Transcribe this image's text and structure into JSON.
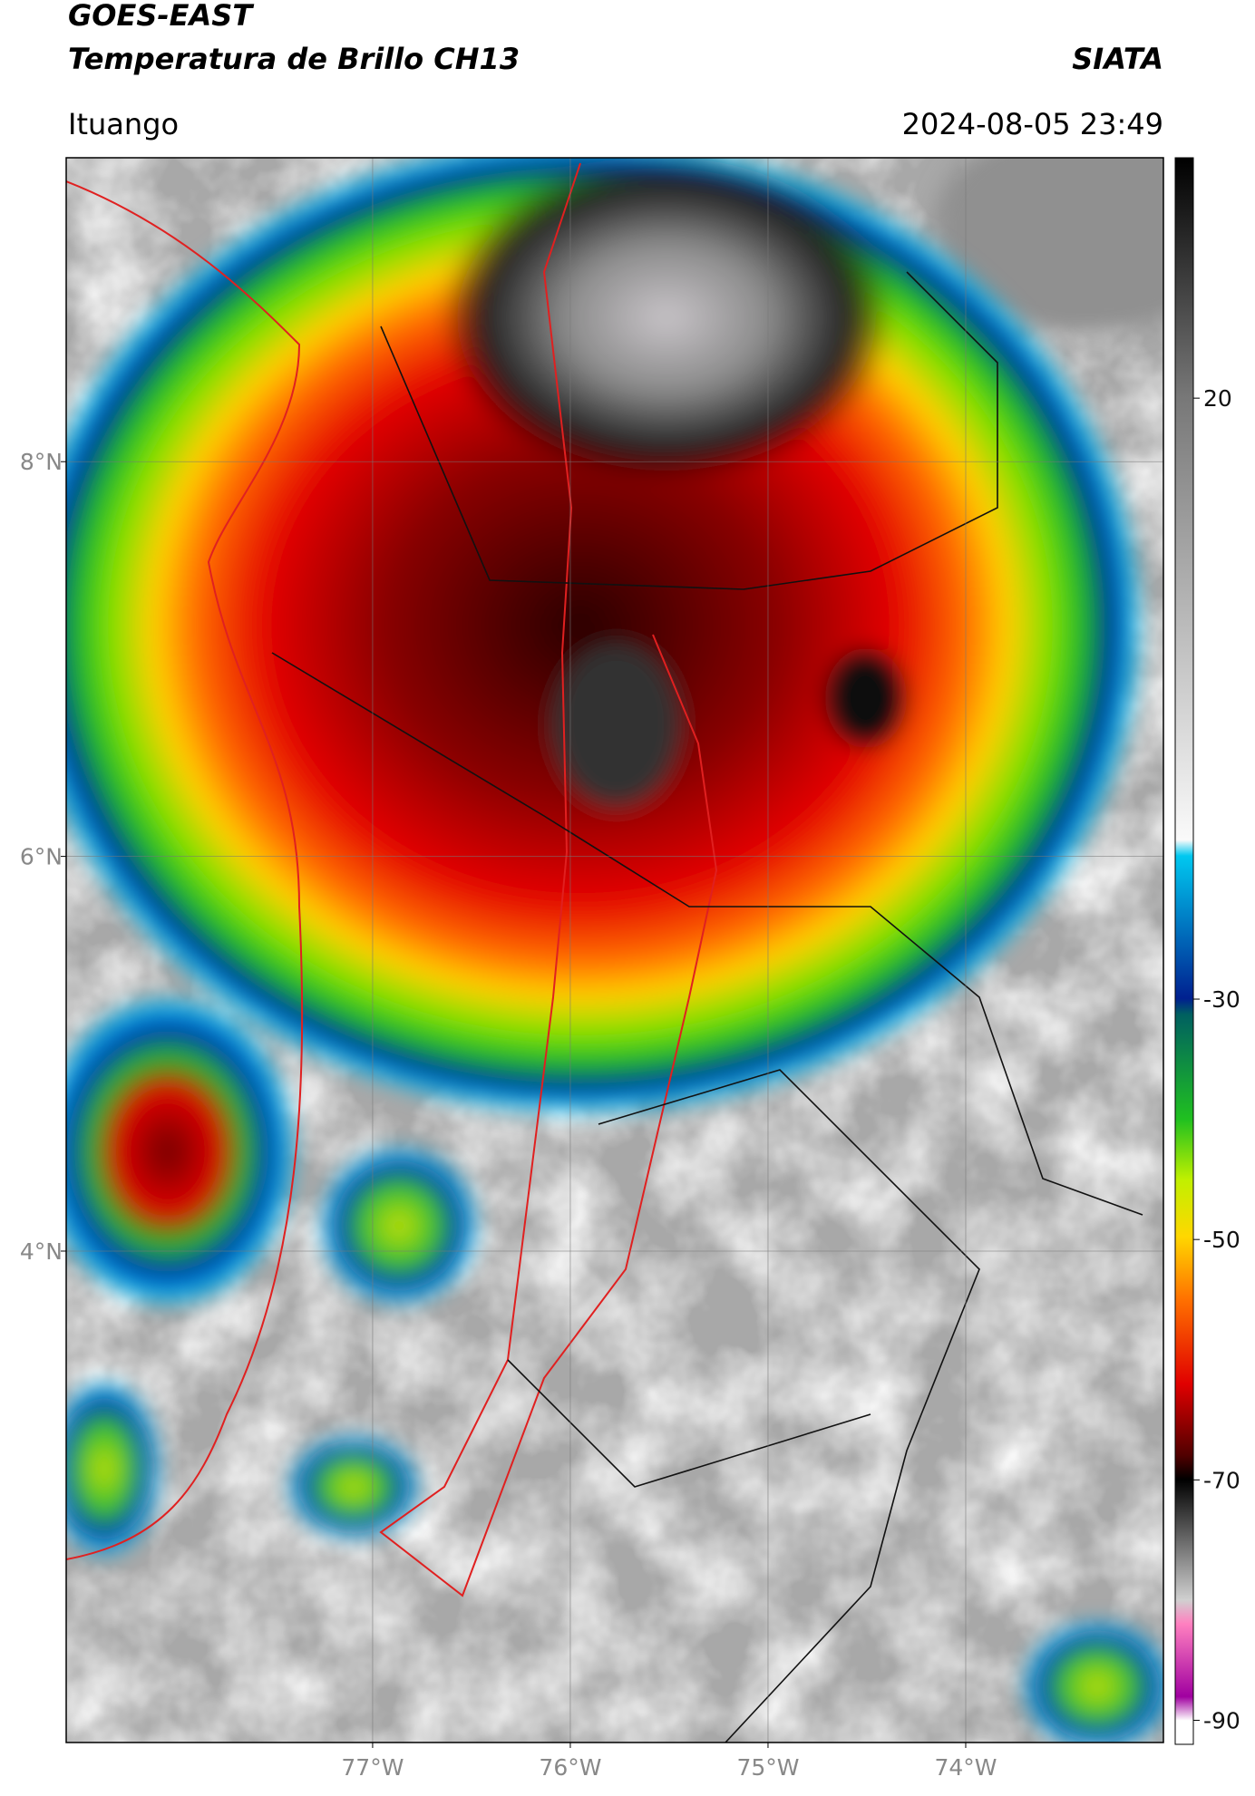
{
  "header": {
    "title": "GOES-EAST",
    "subtitle": "Temperatura de Brillo CH13",
    "source": "SIATA",
    "location": "Ituango",
    "timestamp": "2024-08-05 23:49"
  },
  "map": {
    "xlim": [
      -78.55,
      -73
    ],
    "ylim": [
      1.51,
      9.54
    ],
    "xticks": [
      {
        "value": -77,
        "label": "77°W"
      },
      {
        "value": -76,
        "label": "76°W"
      },
      {
        "value": -75,
        "label": "75°W"
      },
      {
        "value": -74,
        "label": "74°W"
      }
    ],
    "yticks": [
      {
        "value": 4,
        "label": "4°N"
      },
      {
        "value": 6,
        "label": "6°N"
      },
      {
        "value": 8,
        "label": "8°N"
      }
    ],
    "grid": true
  },
  "colorbar": {
    "lim": [
      -92,
      40
    ],
    "ticks": [
      20,
      -30,
      -50,
      -70,
      -90
    ]
  }
}
